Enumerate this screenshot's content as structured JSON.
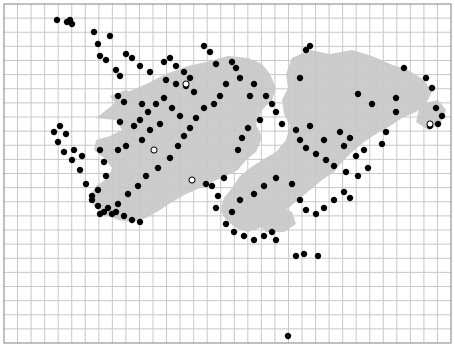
{
  "map": {
    "type": "point-distribution-map",
    "grid": true,
    "grid_columns": 33,
    "grid_rows": 24,
    "colors": {
      "background": "#ffffff",
      "grid": "#c8c8c8",
      "land": "#cccccc",
      "frame": "#808080",
      "record": "#000000",
      "open_record_stroke": "#000000"
    },
    "legend": null
  }
}
